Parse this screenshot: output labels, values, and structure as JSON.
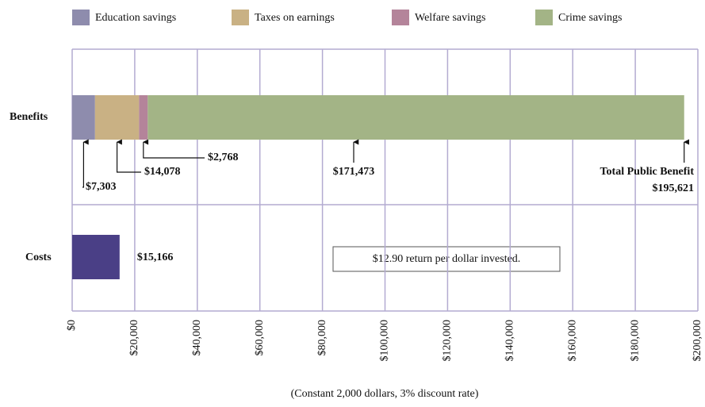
{
  "chart_data": {
    "type": "stacked-bar-horizontal",
    "categories": [
      "Benefits",
      "Costs"
    ],
    "series": [
      {
        "name": "Education savings",
        "color": "#8e8cad",
        "values": [
          7303,
          null
        ],
        "value_labels": [
          "$7,303",
          null
        ]
      },
      {
        "name": "Taxes on earnings",
        "color": "#c9b184",
        "values": [
          14078,
          null
        ],
        "value_labels": [
          "$14,078",
          null
        ]
      },
      {
        "name": "Welfare savings",
        "color": "#b4849a",
        "values": [
          2768,
          null
        ],
        "value_labels": [
          "$2,768",
          null
        ]
      },
      {
        "name": "Crime savings",
        "color": "#a3b486",
        "values": [
          171473,
          null
        ],
        "value_labels": [
          "$171,473",
          null
        ]
      }
    ],
    "costs": {
      "value": 15166,
      "value_label": "$15,166",
      "color": "#4a3f86"
    },
    "total": {
      "label": "Total Public Benefit",
      "value": 195621,
      "value_label": "$195,621"
    },
    "annotation": "$12.90 return per dollar invested.",
    "xlabel": "(Constant 2,000 dollars, 3% discount rate)",
    "xlim": [
      0,
      200000
    ],
    "xticks": [
      {
        "value": 0,
        "label": "$0"
      },
      {
        "value": 20000,
        "label": "$20,000"
      },
      {
        "value": 40000,
        "label": "$40,000"
      },
      {
        "value": 60000,
        "label": "$60,000"
      },
      {
        "value": 80000,
        "label": "$80,000"
      },
      {
        "value": 100000,
        "label": "$100,000"
      },
      {
        "value": 120000,
        "label": "$120,000"
      },
      {
        "value": 140000,
        "label": "$140,000"
      },
      {
        "value": 160000,
        "label": "$160,000"
      },
      {
        "value": 180000,
        "label": "$180,000"
      },
      {
        "value": 200000,
        "label": "$200,000"
      }
    ],
    "grid": true
  }
}
